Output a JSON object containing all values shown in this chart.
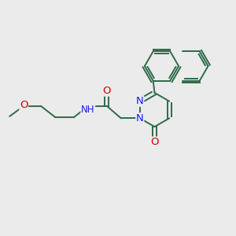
{
  "bg_color": "#ebebeb",
  "bond_color": "#2d6b4a",
  "bond_width": 1.4,
  "atom_colors": {
    "N": "#1a1aff",
    "O": "#cc0000",
    "C": "#000000",
    "H": "#555555"
  },
  "font_size": 8.5,
  "fig_size": [
    3.0,
    3.0
  ],
  "dpi": 100
}
